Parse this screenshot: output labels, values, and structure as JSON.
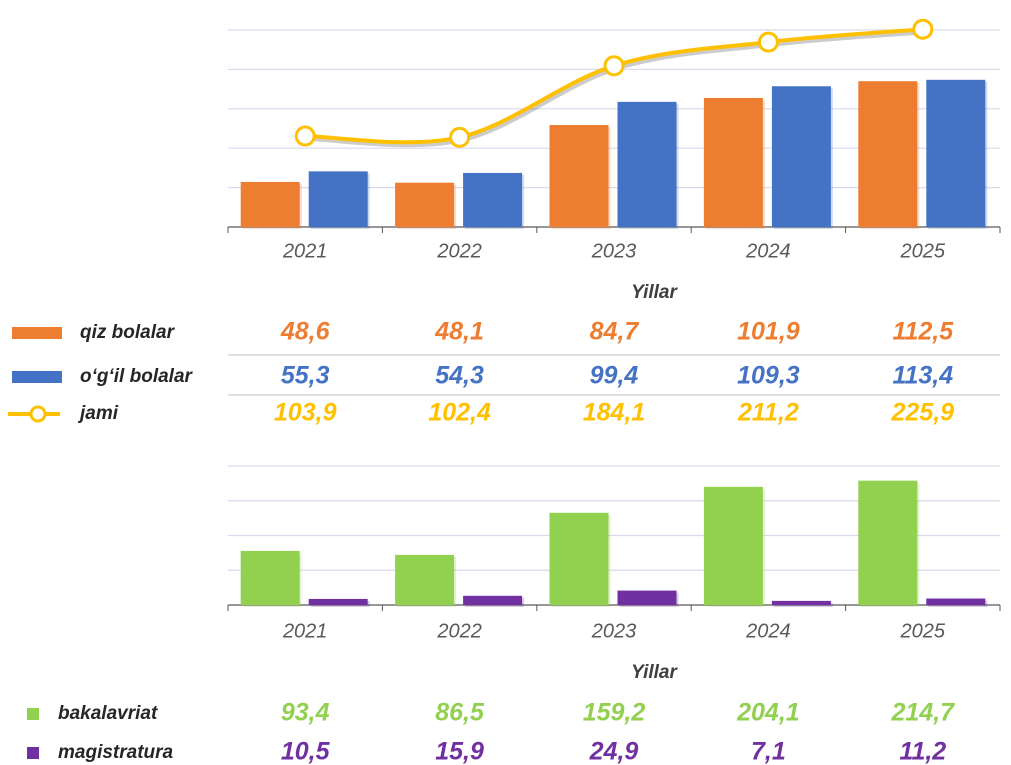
{
  "chart_data": [
    {
      "type": "bar",
      "xlabel": "Yillar",
      "categories": [
        "2021",
        "2022",
        "2023",
        "2024",
        "2025"
      ],
      "series": [
        {
          "name": "qiz bolalar",
          "color": "#ed7d31",
          "values": [
            48.6,
            48.1,
            84.7,
            101.9,
            112.5
          ],
          "value_labels": [
            "48,6",
            "48,1",
            "84,7",
            "101,9",
            "112,5"
          ]
        },
        {
          "name": "o‘g‘il bolalar",
          "color": "#4472c4",
          "values": [
            55.3,
            54.3,
            99.4,
            109.3,
            113.4
          ],
          "value_labels": [
            "55,3",
            "54,3",
            "99,4",
            "109,3",
            "113,4"
          ]
        },
        {
          "name": "jami",
          "color": "#ffc000",
          "type": "line",
          "axis": "y2",
          "values": [
            103.9,
            102.4,
            184.1,
            211.2,
            225.9
          ],
          "value_labels": [
            "103,9",
            "102,4",
            "184,1",
            "211,2",
            "225,9"
          ]
        }
      ],
      "ylim": [
        20,
        145
      ],
      "yticks": [
        20,
        45,
        70,
        95,
        120,
        145
      ],
      "y2lim": [
        0,
        225
      ],
      "grid": true
    },
    {
      "type": "bar",
      "xlabel": "Yillar",
      "categories": [
        "2021",
        "2022",
        "2023",
        "2024",
        "2025"
      ],
      "series": [
        {
          "name": "bakalavriat",
          "color": "#92d050",
          "values": [
            93.4,
            86.5,
            159.2,
            204.1,
            214.7
          ],
          "value_labels": [
            "93,4",
            "86,5",
            "159,2",
            "204,1",
            "214,7"
          ]
        },
        {
          "name": "magistratura",
          "color": "#7030a0",
          "values": [
            10.5,
            15.9,
            24.9,
            7.1,
            11.2
          ],
          "value_labels": [
            "10,5",
            "15,9",
            "24,9",
            "7,1",
            "11,2"
          ]
        }
      ],
      "ylim": [
        0,
        240
      ],
      "yticks": [
        0,
        60,
        120,
        180,
        240
      ],
      "grid": true
    }
  ]
}
